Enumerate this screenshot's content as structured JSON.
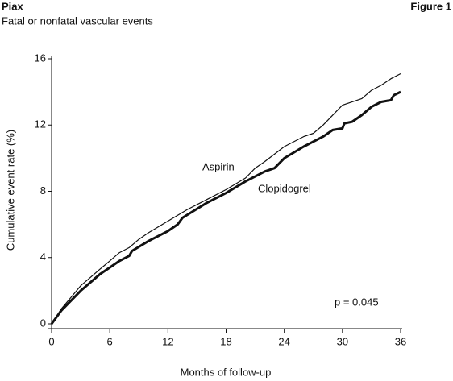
{
  "chart_data": {
    "type": "line",
    "title": "Piax",
    "subtitle": "Fatal or nonfatal vascular events",
    "figure_label": "Figure 1",
    "x_label": "Months of follow-up",
    "y_label": "Cumulative event rate (%)",
    "annotations": [
      "p = 0.045"
    ],
    "xlim": [
      0,
      36
    ],
    "xticks": [
      0,
      6,
      12,
      18,
      24,
      30,
      36
    ],
    "ylim": [
      0,
      16
    ],
    "yticks": [
      0,
      4,
      8,
      12,
      16
    ],
    "series": [
      {
        "name": "Aspirin",
        "color": "#111111",
        "x": [
          0,
          1,
          2,
          3,
          4,
          5,
          6,
          7,
          8,
          9,
          10,
          12,
          14,
          16,
          18,
          20,
          21,
          22,
          24,
          26,
          27,
          28,
          30,
          32,
          33,
          34,
          35,
          36
        ],
        "values": [
          0,
          0.9,
          1.6,
          2.3,
          2.8,
          3.3,
          3.8,
          4.3,
          4.6,
          5.1,
          5.5,
          6.2,
          6.9,
          7.5,
          8.1,
          8.8,
          9.4,
          9.8,
          10.7,
          11.3,
          11.5,
          12.0,
          13.2,
          13.6,
          14.1,
          14.4,
          14.8,
          15.1
        ]
      },
      {
        "name": "Clopidogrel",
        "color": "#111111",
        "x": [
          0,
          1,
          2,
          3,
          4,
          5,
          6,
          7,
          8,
          8.3,
          10,
          12,
          13,
          13.5,
          16,
          18,
          20,
          22,
          23,
          24,
          26,
          28,
          29,
          30,
          30.2,
          31,
          32,
          33,
          34,
          35,
          35.3,
          36
        ],
        "values": [
          0,
          0.8,
          1.4,
          2.0,
          2.5,
          3.0,
          3.4,
          3.8,
          4.1,
          4.4,
          5.0,
          5.6,
          6.0,
          6.4,
          7.3,
          7.9,
          8.6,
          9.2,
          9.4,
          10.0,
          10.7,
          11.3,
          11.7,
          11.8,
          12.1,
          12.2,
          12.6,
          13.1,
          13.4,
          13.5,
          13.8,
          14.0
        ]
      }
    ]
  }
}
